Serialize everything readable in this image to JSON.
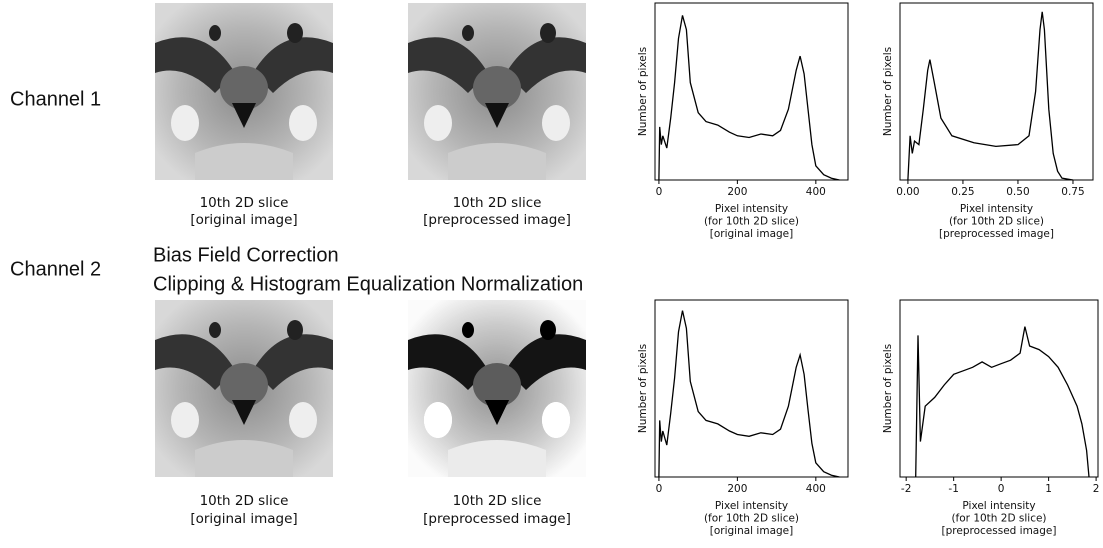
{
  "rows": [
    {
      "label": "Channel 1",
      "captions": [
        [
          "10th 2D slice",
          "[original image]"
        ],
        [
          "10th 2D slice",
          "[preprocessed image]"
        ]
      ]
    },
    {
      "label": "Channel 2",
      "captions": [
        [
          "10th 2D slice",
          "[original image]"
        ],
        [
          "10th 2D slice",
          "[preprocessed image]"
        ]
      ]
    }
  ],
  "annotations": [
    "Bias Field Correction",
    "Clipping & Histogram Equalization Normalization"
  ],
  "chart_data": [
    {
      "type": "line",
      "y_label": "Number of pixels",
      "x_label": [
        "Pixel intensity",
        "(for 10th 2D slice)",
        "[original image]"
      ],
      "x": [
        0,
        2,
        6,
        10,
        20,
        30,
        40,
        50,
        60,
        70,
        80,
        100,
        120,
        150,
        180,
        200,
        230,
        260,
        290,
        310,
        330,
        350,
        360,
        370,
        380,
        390,
        400,
        420,
        440,
        460
      ],
      "values": [
        0,
        30,
        20,
        25,
        18,
        35,
        55,
        80,
        93,
        85,
        55,
        38,
        33,
        31,
        27,
        25,
        24,
        26,
        25,
        28,
        40,
        62,
        70,
        60,
        40,
        20,
        8,
        3,
        1,
        0
      ],
      "color": "#000000",
      "xlim": [
        -10,
        482
      ],
      "xticks": [
        0,
        200,
        400
      ],
      "ylim": [
        0,
        100
      ]
    },
    {
      "type": "line",
      "y_label": "Number of pixels",
      "x_label": [
        "Pixel intensity",
        "(for 10th 2D slice)",
        "[preprocessed image]"
      ],
      "x": [
        0,
        0.01,
        0.02,
        0.03,
        0.05,
        0.07,
        0.09,
        0.1,
        0.12,
        0.15,
        0.2,
        0.3,
        0.4,
        0.5,
        0.55,
        0.58,
        0.6,
        0.61,
        0.62,
        0.64,
        0.66,
        0.68,
        0.7,
        0.75
      ],
      "values": [
        0,
        25,
        15,
        22,
        20,
        40,
        62,
        68,
        55,
        35,
        25,
        21,
        19,
        20,
        25,
        50,
        85,
        95,
        85,
        40,
        15,
        5,
        1,
        0
      ],
      "color": "#000000",
      "xlim": [
        -0.036,
        0.841
      ],
      "xticks": [
        {
          "value": 0,
          "label": "0.00"
        },
        {
          "value": 0.25,
          "label": "0.25"
        },
        {
          "value": 0.5,
          "label": "0.50"
        },
        {
          "value": 0.75,
          "label": "0.75"
        }
      ],
      "ylim": [
        0,
        100
      ]
    },
    {
      "type": "line",
      "y_label": "Number of pixels",
      "x_label": [
        "Pixel intensity",
        "(for 10th 2D slice)",
        "[original image]"
      ],
      "x": [
        0,
        2,
        6,
        10,
        20,
        30,
        40,
        50,
        60,
        70,
        80,
        100,
        120,
        150,
        180,
        200,
        230,
        260,
        290,
        310,
        330,
        350,
        360,
        370,
        380,
        390,
        400,
        420,
        440,
        460
      ],
      "values": [
        0,
        32,
        20,
        26,
        18,
        36,
        56,
        82,
        94,
        84,
        54,
        37,
        32,
        30,
        26,
        24,
        23,
        25,
        24,
        27,
        40,
        62,
        69,
        58,
        38,
        19,
        8,
        3,
        1,
        0
      ],
      "color": "#000000",
      "xlim": [
        -10,
        482
      ],
      "xticks": [
        0,
        200,
        400
      ],
      "ylim": [
        0,
        100
      ]
    },
    {
      "type": "line",
      "y_label": "Number of pixels",
      "x_label": [
        "Pixel intensity",
        "(for 10th 2D slice)",
        "[preprocessed image]"
      ],
      "x": [
        -1.8,
        -1.75,
        -1.7,
        -1.6,
        -1.4,
        -1.2,
        -1,
        -0.8,
        -0.6,
        -0.4,
        -0.2,
        0,
        0.2,
        0.4,
        0.5,
        0.6,
        0.8,
        1,
        1.2,
        1.4,
        1.6,
        1.7,
        1.8,
        1.85
      ],
      "values": [
        0,
        80,
        20,
        40,
        45,
        52,
        58,
        60,
        62,
        65,
        62,
        64,
        66,
        70,
        85,
        74,
        72,
        68,
        62,
        52,
        40,
        30,
        15,
        0
      ],
      "color": "#000000",
      "xlim": [
        -2.13,
        2.04
      ],
      "xticks": [
        -2,
        -1,
        0,
        1,
        2
      ],
      "ylim": [
        0,
        100
      ]
    }
  ]
}
